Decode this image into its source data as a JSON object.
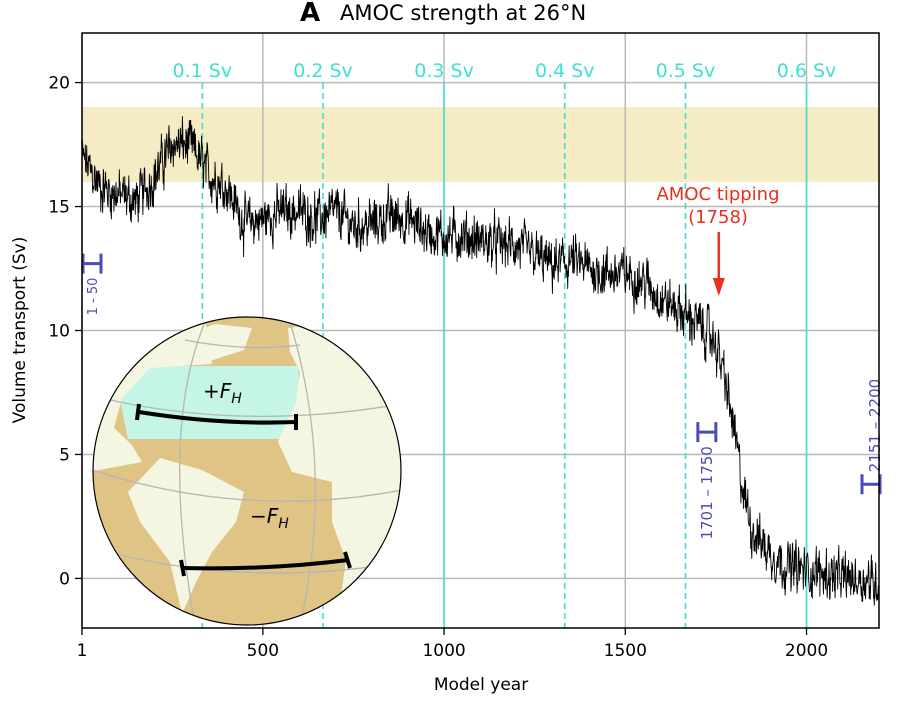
{
  "chart_data": {
    "type": "line",
    "title_letter": "A",
    "title": "AMOC strength at 26°N",
    "xlabel": "Model year",
    "ylabel": "Volume transport (Sv)",
    "xlim": [
      1,
      2200
    ],
    "ylim": [
      -2,
      22
    ],
    "xticks": [
      1,
      500,
      1000,
      1500,
      2000
    ],
    "yticks": [
      0,
      5,
      10,
      15,
      20
    ],
    "grid": true,
    "shaded_band": {
      "y_range": [
        16,
        19
      ],
      "color": "#f5ebc4"
    },
    "series_color": "#000000",
    "series_mean": {
      "x": [
        1,
        50,
        100,
        150,
        200,
        250,
        300,
        350,
        400,
        450,
        500,
        550,
        600,
        650,
        700,
        750,
        800,
        850,
        900,
        950,
        1000,
        1050,
        1100,
        1150,
        1200,
        1250,
        1300,
        1350,
        1400,
        1450,
        1500,
        1550,
        1600,
        1650,
        1700,
        1750,
        1775,
        1800,
        1825,
        1850,
        1900,
        1950,
        2000,
        2050,
        2100,
        2150,
        2200
      ],
      "y": [
        17,
        15.8,
        15.5,
        15.2,
        16.2,
        17.5,
        17.5,
        16.3,
        15.8,
        14.3,
        14.5,
        14.8,
        14.8,
        14.5,
        14.8,
        14.2,
        14.3,
        14.6,
        14.5,
        14.0,
        13.8,
        13.8,
        13.6,
        13.5,
        13.4,
        13.0,
        12.6,
        12.8,
        12.5,
        12.3,
        12.3,
        12.0,
        11.3,
        10.8,
        10.3,
        9.5,
        8.0,
        6.0,
        3.5,
        2.0,
        1.0,
        0.5,
        0.3,
        0.2,
        0.0,
        0.0,
        -0.2
      ]
    },
    "freshwater_markers": {
      "color": "#40e0d0",
      "items": [
        {
          "year": 333,
          "label": "0.1 Sv"
        },
        {
          "year": 666,
          "label": "0.2 Sv"
        },
        {
          "year": 1000,
          "label": "0.3 Sv"
        },
        {
          "year": 1333,
          "label": "0.4 Sv"
        },
        {
          "year": 1666,
          "label": "0.5 Sv"
        },
        {
          "year": 2000,
          "label": "0.6 Sv"
        }
      ]
    },
    "annotation": {
      "text_line1": "AMOC tipping",
      "text_line2": "(1758)",
      "year": 1758,
      "color": "#e8301c"
    },
    "period_brackets": {
      "color": "#4a4aba",
      "items": [
        {
          "label": "1 - 50",
          "year": 25,
          "value": 12.7
        },
        {
          "label": "1701 – 1750",
          "year": 1725,
          "value": 5.9
        },
        {
          "label": "2151 – 2200",
          "year": 2175,
          "value": 3.8
        }
      ]
    },
    "inset": {
      "label_north": "+F",
      "label_south": "−F",
      "subscript": "H"
    }
  }
}
